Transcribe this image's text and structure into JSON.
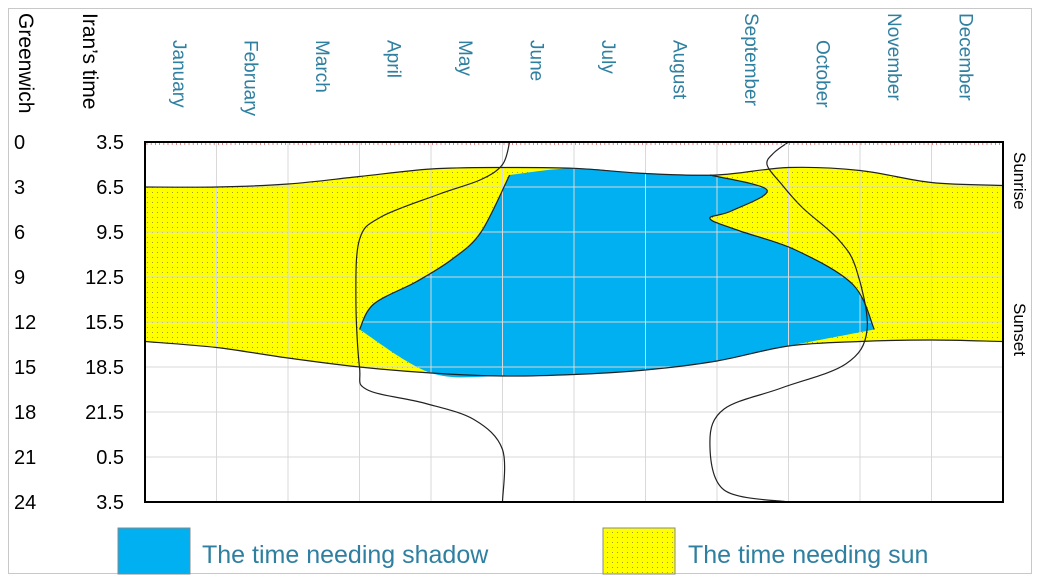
{
  "chart_data": {
    "type": "area",
    "header_labels": {
      "greenwich": "Greenwich",
      "iran": "Iran’s time"
    },
    "months": [
      "January",
      "February",
      "March",
      "April",
      "May",
      "June",
      "July",
      "August",
      "September",
      "October",
      "November",
      "December"
    ],
    "greenwich_ticks": [
      "0",
      "3",
      "6",
      "9",
      "12",
      "15",
      "18",
      "21",
      "24"
    ],
    "iran_ticks": [
      "3.5",
      "6.5",
      "9.5",
      "12.5",
      "15.5",
      "18.5",
      "21.5",
      "0.5",
      "3.5"
    ],
    "y_range_greenwich_hours": [
      0,
      24
    ],
    "x_range_months": [
      0,
      12
    ],
    "grid": true,
    "side_labels": {
      "sunrise": "Sunrise",
      "sunset": "Sunset"
    },
    "legend": [
      {
        "label": "The time needing shadow",
        "color": "#00b0f0"
      },
      {
        "label": "The time needing sun",
        "color": "#ffff00"
      }
    ],
    "month_label_color": "#2e7fa0",
    "series": {
      "sunrise": {
        "x": [
          0,
          1,
          2,
          3,
          4,
          5,
          6,
          7,
          8,
          9,
          10,
          11,
          12
        ],
        "y": [
          3.0,
          3.0,
          2.8,
          2.3,
          1.8,
          1.7,
          1.75,
          2.1,
          2.2,
          1.7,
          1.9,
          2.7,
          2.9
        ]
      },
      "sunset": {
        "x": [
          0,
          1,
          2,
          3,
          4,
          5,
          6,
          7,
          8,
          9,
          10,
          11,
          12
        ],
        "y": [
          13.3,
          13.7,
          14.4,
          15.0,
          15.4,
          15.6,
          15.5,
          15.2,
          14.6,
          13.6,
          13.3,
          13.2,
          13.3
        ]
      },
      "shadow_start": {
        "x": [
          7.9,
          8.7,
          8.2,
          7.9,
          8.3,
          9.1,
          9.9,
          10.2
        ],
        "y": [
          2.2,
          3.2,
          4.6,
          5.1,
          5.9,
          7.2,
          9.5,
          12.5
        ]
      },
      "shadow_end": {
        "x": [
          3.0,
          3.2,
          3.8,
          4.3,
          4.7,
          5.1
        ],
        "y": [
          12.5,
          10.8,
          9.3,
          7.8,
          6.0,
          2.2
        ]
      },
      "boundary_left": {
        "x": [
          5.1,
          5.0,
          4.7,
          4.1,
          3.3,
          3.0,
          2.95,
          3.0,
          3.1,
          3.9,
          4.6,
          5.0,
          5.0
        ],
        "y": [
          0.0,
          1.5,
          2.5,
          3.5,
          5.0,
          6.5,
          10.5,
          15.0,
          16.5,
          17.4,
          18.5,
          20.5,
          24.0
        ]
      },
      "boundary_right": {
        "x": [
          9.0,
          8.8,
          8.7,
          8.9,
          9.2,
          9.7,
          9.95,
          10.1,
          9.8,
          8.9,
          8.1,
          7.9,
          8.1,
          9.0
        ],
        "y": [
          0.0,
          0.7,
          1.5,
          2.8,
          4.4,
          6.5,
          8.5,
          12.5,
          14.8,
          16.4,
          17.8,
          20.0,
          23.2,
          24.0
        ]
      }
    }
  }
}
